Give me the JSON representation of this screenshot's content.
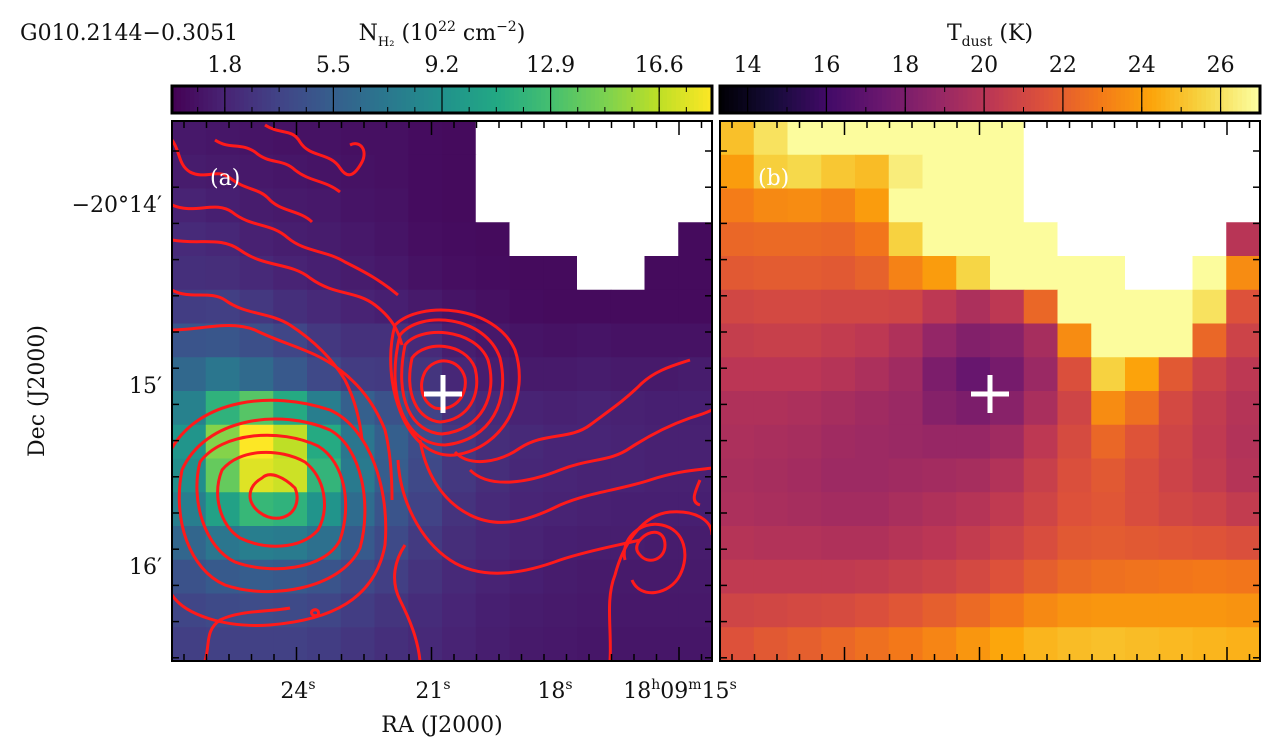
{
  "source_name": "G010.2144−0.3051",
  "chart_data": [
    {
      "type": "heatmap",
      "panel_label": "(a)",
      "colorbar": {
        "label_main": "N",
        "label_sub": "H₂",
        "label_rest": " (10",
        "label_exp": "22",
        "label_unit": " cm",
        "label_unit_exp": "−2",
        "label_close": ")",
        "ticks": [
          "1.8",
          "5.5",
          "9.2",
          "12.9",
          "16.6"
        ],
        "tick_values": [
          1.8,
          5.5,
          9.2,
          12.9,
          16.6
        ],
        "range": [
          0,
          18.4
        ],
        "colormap": "viridis"
      },
      "xlabel": "RA (J2000)",
      "ylabel": "Dec (J2000)",
      "xticks": [
        {
          "base": "24",
          "sup": "s"
        },
        {
          "base": "21",
          "sup": "s"
        },
        {
          "base": "18",
          "sup": "s"
        },
        {
          "base": "18",
          "sup": "h",
          "base2": "09",
          "sup2": "m",
          "base3": "15",
          "sup3": "s"
        }
      ],
      "yticks": [
        "−20°14′",
        "15′",
        "16′"
      ],
      "contour_color": "#ff1a1a",
      "marker": "+",
      "marker_color": "#ffffff",
      "blank_color": "#ffffff",
      "values": [
        [
          1.2,
          1.1,
          1.0,
          0.9,
          0.9,
          0.8,
          0.8,
          0.6,
          0.5,
          null,
          null,
          null,
          null,
          null,
          null,
          null
        ],
        [
          1.4,
          1.3,
          1.2,
          1.1,
          1.0,
          0.9,
          0.8,
          0.6,
          0.5,
          null,
          null,
          null,
          null,
          null,
          null,
          null
        ],
        [
          1.8,
          1.6,
          1.4,
          1.3,
          1.2,
          1.0,
          0.9,
          0.6,
          0.5,
          null,
          null,
          null,
          null,
          null,
          null,
          null
        ],
        [
          2.2,
          2.0,
          1.7,
          1.5,
          1.4,
          1.2,
          1.0,
          0.7,
          0.6,
          0.5,
          null,
          null,
          null,
          null,
          null,
          0.5
        ],
        [
          2.5,
          2.4,
          2.1,
          1.8,
          1.6,
          1.4,
          1.2,
          0.9,
          0.7,
          0.6,
          0.5,
          0.5,
          null,
          null,
          0.5,
          0.5
        ],
        [
          3.3,
          3.4,
          3.0,
          2.5,
          2.1,
          1.8,
          1.6,
          1.3,
          1.0,
          0.8,
          0.6,
          0.5,
          0.5,
          0.5,
          0.5,
          0.5
        ],
        [
          4.8,
          4.9,
          4.4,
          3.8,
          3.0,
          2.6,
          2.6,
          2.2,
          1.5,
          1.2,
          1.0,
          0.9,
          1.0,
          0.9,
          0.9,
          0.9
        ],
        [
          6.2,
          7.2,
          6.3,
          5.1,
          4.0,
          3.2,
          3.1,
          2.8,
          2.0,
          1.5,
          1.3,
          1.3,
          1.4,
          1.3,
          1.3,
          1.4
        ],
        [
          8.0,
          11.8,
          13.5,
          11.2,
          7.8,
          5.6,
          4.6,
          3.6,
          2.6,
          2.1,
          1.8,
          1.7,
          1.8,
          1.7,
          1.6,
          1.6
        ],
        [
          9.5,
          15.0,
          18.4,
          16.6,
          11.2,
          7.2,
          5.5,
          4.2,
          3.0,
          2.4,
          2.1,
          1.9,
          1.9,
          1.8,
          1.7,
          1.7
        ],
        [
          9.0,
          14.0,
          17.5,
          17.0,
          12.0,
          7.5,
          5.4,
          4.0,
          3.0,
          2.4,
          2.0,
          1.9,
          1.8,
          1.8,
          1.7,
          1.7
        ],
        [
          7.8,
          10.5,
          12.2,
          11.8,
          9.4,
          6.5,
          4.8,
          3.6,
          2.7,
          2.2,
          1.9,
          1.8,
          1.7,
          1.6,
          1.6,
          1.6
        ],
        [
          6.0,
          7.2,
          7.8,
          7.6,
          6.8,
          5.2,
          4.1,
          3.1,
          2.4,
          2.0,
          1.8,
          1.6,
          1.5,
          1.5,
          1.4,
          1.4
        ],
        [
          4.6,
          5.2,
          5.4,
          5.2,
          4.8,
          4.0,
          3.4,
          2.7,
          2.1,
          1.8,
          1.6,
          1.4,
          1.3,
          1.3,
          1.3,
          1.3
        ],
        [
          3.8,
          4.1,
          4.2,
          4.1,
          3.8,
          3.3,
          2.8,
          2.3,
          1.9,
          1.6,
          1.4,
          1.3,
          1.2,
          1.2,
          1.2,
          1.2
        ],
        [
          3.4,
          3.5,
          3.5,
          3.5,
          3.3,
          2.9,
          2.5,
          2.1,
          1.8,
          1.5,
          1.3,
          1.2,
          1.1,
          1.1,
          1.1,
          1.1
        ]
      ]
    },
    {
      "type": "heatmap",
      "panel_label": "(b)",
      "colorbar": {
        "label_main": "T",
        "label_sub": "dust",
        "label_rest": " (K)",
        "ticks": [
          "14",
          "16",
          "18",
          "20",
          "22",
          "24",
          "26"
        ],
        "tick_values": [
          14,
          16,
          18,
          20,
          22,
          24,
          26
        ],
        "range": [
          13.3,
          27.0
        ],
        "colormap": "inferno"
      },
      "marker": "+",
      "marker_color": "#ffffff",
      "blank_color": "#ffffff",
      "values": [
        [
          25.0,
          26.0,
          26.9,
          26.9,
          26.9,
          26.9,
          26.9,
          26.9,
          26.9,
          null,
          null,
          null,
          null,
          null,
          null,
          null
        ],
        [
          24.0,
          25.4,
          25.7,
          25.2,
          24.9,
          26.4,
          26.9,
          26.9,
          26.9,
          null,
          null,
          null,
          null,
          null,
          null,
          null
        ],
        [
          23.0,
          23.4,
          23.5,
          23.2,
          24.0,
          26.9,
          26.9,
          26.9,
          26.9,
          null,
          null,
          null,
          null,
          null,
          null,
          null
        ],
        [
          22.3,
          22.4,
          22.4,
          22.3,
          22.8,
          25.5,
          26.9,
          26.9,
          26.9,
          26.9,
          null,
          null,
          null,
          null,
          null,
          20.0
        ],
        [
          21.8,
          21.9,
          21.9,
          21.8,
          22.1,
          23.2,
          24.0,
          25.6,
          26.9,
          26.9,
          26.9,
          26.9,
          null,
          null,
          26.9,
          23.5
        ],
        [
          21.0,
          21.1,
          21.1,
          21.0,
          21.0,
          20.9,
          20.2,
          19.6,
          20.2,
          22.3,
          26.9,
          26.9,
          26.9,
          26.9,
          26.0,
          21.5
        ],
        [
          20.5,
          20.6,
          20.6,
          20.4,
          20.2,
          19.7,
          18.8,
          18.2,
          18.4,
          19.4,
          23.5,
          26.9,
          26.9,
          26.9,
          22.3,
          20.8
        ],
        [
          20.1,
          20.1,
          20.1,
          19.9,
          19.6,
          19.2,
          18.0,
          17.3,
          17.8,
          19.0,
          21.4,
          25.5,
          24.2,
          21.8,
          20.8,
          20.2
        ],
        [
          19.7,
          19.7,
          19.6,
          19.4,
          19.2,
          19.0,
          18.3,
          18.0,
          18.4,
          19.5,
          20.9,
          23.5,
          22.6,
          21.1,
          20.4,
          19.9
        ],
        [
          19.6,
          19.5,
          19.4,
          19.2,
          19.1,
          19.0,
          18.9,
          18.9,
          19.2,
          20.2,
          21.2,
          22.3,
          21.6,
          20.9,
          20.3,
          19.8
        ],
        [
          19.5,
          19.4,
          19.3,
          19.1,
          19.1,
          19.2,
          19.3,
          19.4,
          19.8,
          20.6,
          21.4,
          21.8,
          21.3,
          20.8,
          20.4,
          19.9
        ],
        [
          19.6,
          19.5,
          19.4,
          19.3,
          19.3,
          19.5,
          19.7,
          19.9,
          20.3,
          20.9,
          21.5,
          21.7,
          21.3,
          21.0,
          20.8,
          20.4
        ],
        [
          19.9,
          19.8,
          19.8,
          19.7,
          19.7,
          19.9,
          20.1,
          20.4,
          20.8,
          21.3,
          21.8,
          21.9,
          21.8,
          21.7,
          21.6,
          21.4
        ],
        [
          20.3,
          20.3,
          20.3,
          20.3,
          20.4,
          20.6,
          20.8,
          21.1,
          21.5,
          22.0,
          22.4,
          22.6,
          22.7,
          22.8,
          22.9,
          22.8
        ],
        [
          20.9,
          21.0,
          21.1,
          21.2,
          21.4,
          21.7,
          22.0,
          22.4,
          22.9,
          23.4,
          23.7,
          23.8,
          23.8,
          23.8,
          23.8,
          23.7
        ],
        [
          21.5,
          21.8,
          22.0,
          22.3,
          22.6,
          22.9,
          23.3,
          23.8,
          24.3,
          24.7,
          24.9,
          25.0,
          24.9,
          24.8,
          24.7,
          24.6
        ]
      ]
    }
  ]
}
